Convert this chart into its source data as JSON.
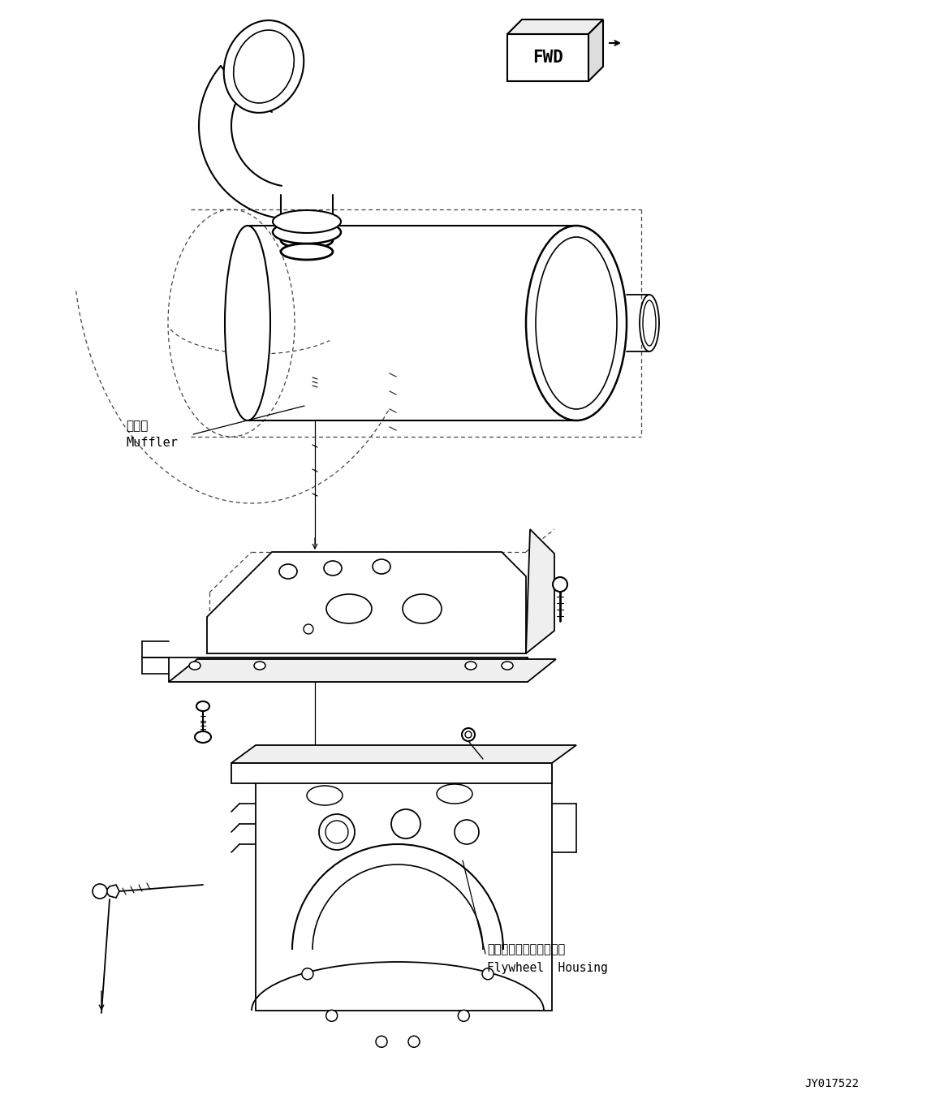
{
  "bg_color": "#ffffff",
  "line_color": "#000000",
  "dashed_color": "#555555",
  "fig_width": 11.63,
  "fig_height": 13.65,
  "dpi": 100,
  "label_muffler_ja": "マフラ",
  "label_muffler_en": "Muffler",
  "label_flywheel_ja": "フライホイルハウジング",
  "label_flywheel_en": "Flywheel  Housing",
  "label_fwd": "FWD",
  "part_number": "JY017522"
}
